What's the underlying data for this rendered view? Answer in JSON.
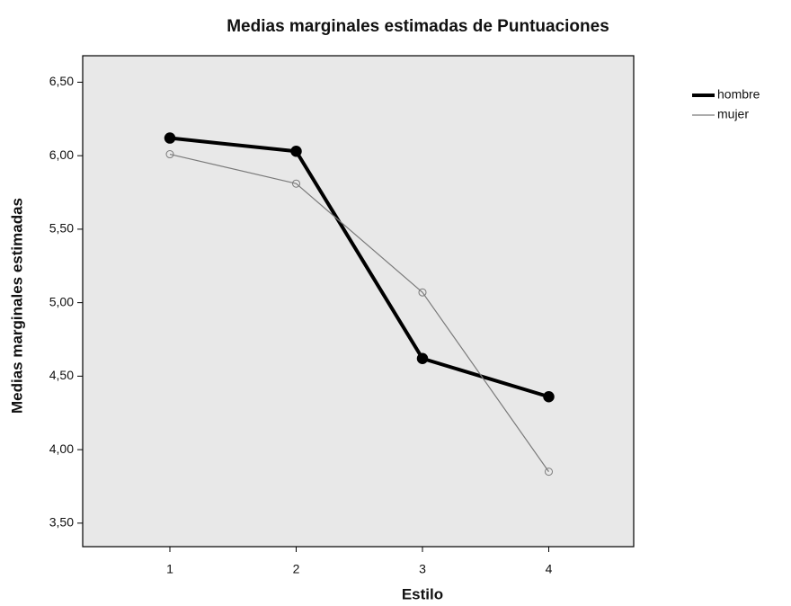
{
  "chart_data": {
    "type": "line",
    "title": "Medias marginales estimadas de Puntuaciones",
    "x_label": "Estilo",
    "y_label": "Medias marginales estimadas",
    "categories": [
      "1",
      "2",
      "3",
      "4"
    ],
    "series": [
      {
        "name": "hombre",
        "color": "#000000",
        "values": [
          6.12,
          6.03,
          4.62,
          4.36
        ]
      },
      {
        "name": "mujer",
        "color": "#7a7a7a",
        "values": [
          6.01,
          5.81,
          5.07,
          3.85
        ]
      }
    ],
    "ylim": [
      3.34,
      6.68
    ],
    "yticks": [
      {
        "value": 3.5,
        "label": "3,50"
      },
      {
        "value": 4.0,
        "label": "4,00"
      },
      {
        "value": 4.5,
        "label": "4,50"
      },
      {
        "value": 5.0,
        "label": "5,00"
      },
      {
        "value": 5.5,
        "label": "5,50"
      },
      {
        "value": 6.0,
        "label": "6,00"
      },
      {
        "value": 6.5,
        "label": "6,50"
      }
    ],
    "grid": false,
    "legend": "right"
  }
}
